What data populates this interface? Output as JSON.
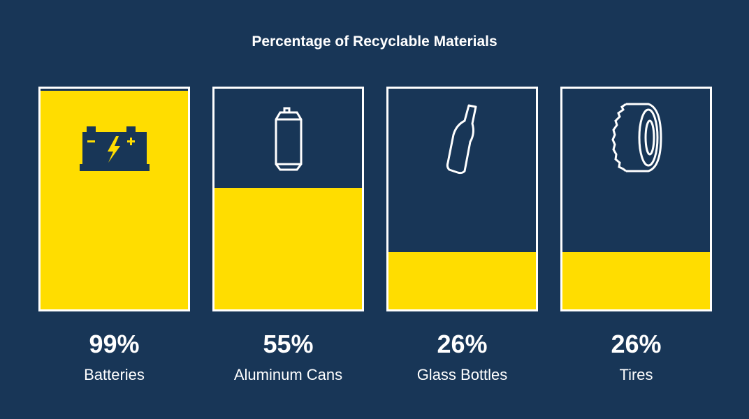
{
  "chart_data": {
    "type": "bar",
    "title": "Percentage of Recyclable Materials",
    "categories": [
      "Batteries",
      "Aluminum Cans",
      "Glass Bottles",
      "Tires"
    ],
    "values": [
      99,
      55,
      26,
      26
    ],
    "value_labels": [
      "99%",
      "55%",
      "26%",
      "26%"
    ],
    "ylim": [
      0,
      100
    ],
    "icons": [
      "battery-icon",
      "can-icon",
      "bottle-icon",
      "tire-icon"
    ]
  },
  "colors": {
    "background": "#183657",
    "fill": "#ffdd00",
    "border": "#ffffff"
  }
}
